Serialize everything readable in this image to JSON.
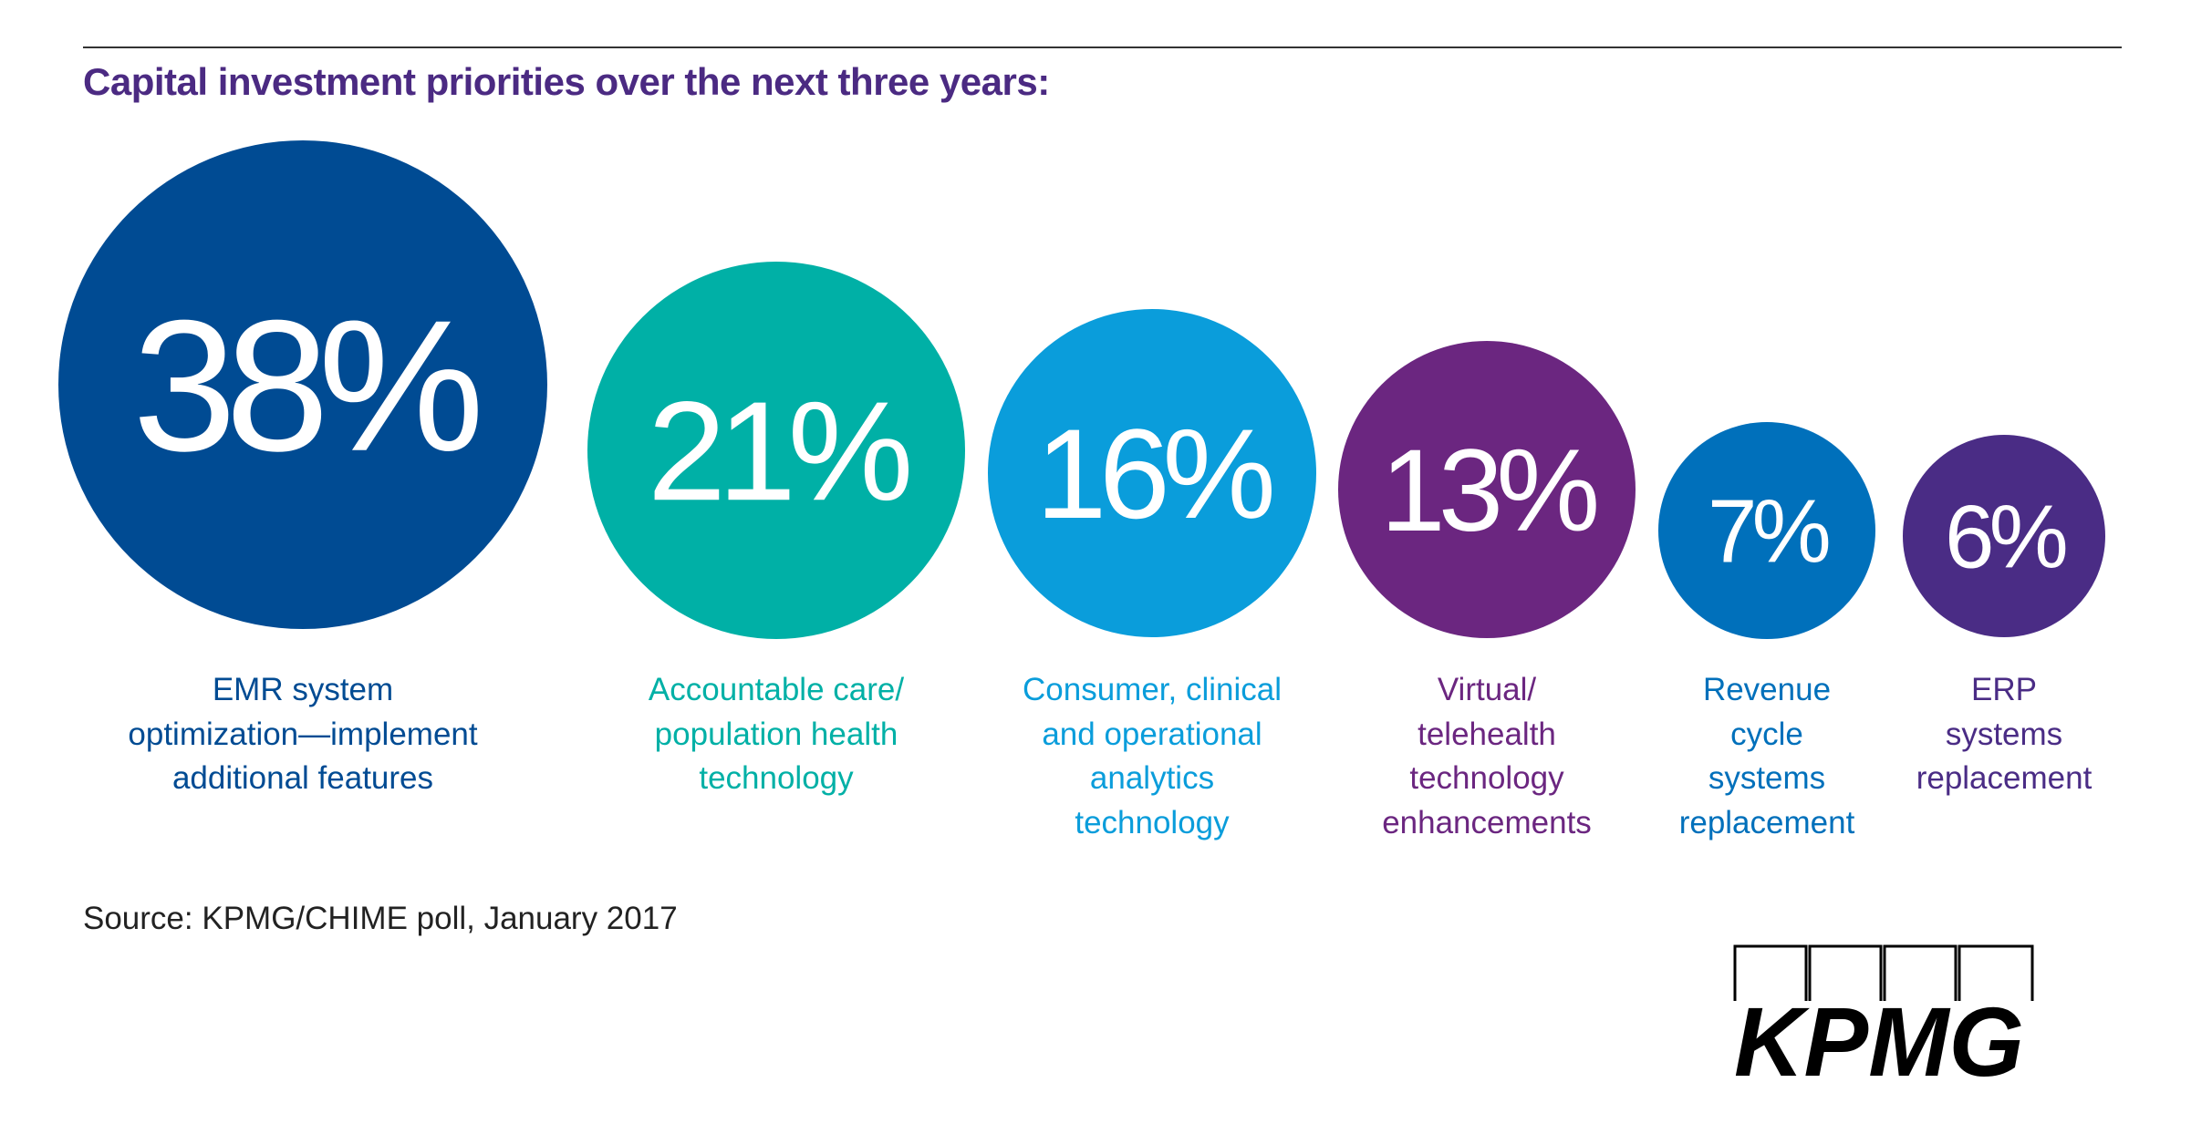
{
  "title": "Capital investment priorities over the next three years:",
  "chart_data": {
    "type": "bubble",
    "title": "Capital investment priorities over the next three years:",
    "unit": "%",
    "categories": [
      "EMR system\noptimization—implement\nadditional features",
      "Accountable care/\npopulation health\ntechnology",
      "Consumer, clinical\nand operational\nanalytics\ntechnology",
      "Virtual/\ntelehealth\ntechnology\nenhancements",
      "Revenue\ncycle\nsystems\nreplacement",
      "ERP\nsystems\nreplacement"
    ],
    "values": [
      38,
      21,
      16,
      13,
      7,
      6
    ],
    "value_labels": [
      "38%",
      "21%",
      "16%",
      "13%",
      "7%",
      "6%"
    ],
    "colors": [
      "#004b93",
      "#00b0a6",
      "#0a9ddb",
      "#6b2680",
      "#0070bb",
      "#4a2c85"
    ]
  },
  "source": "Source: KPMG/CHIME poll, January 2017",
  "logo": {
    "text": "KPMG"
  }
}
